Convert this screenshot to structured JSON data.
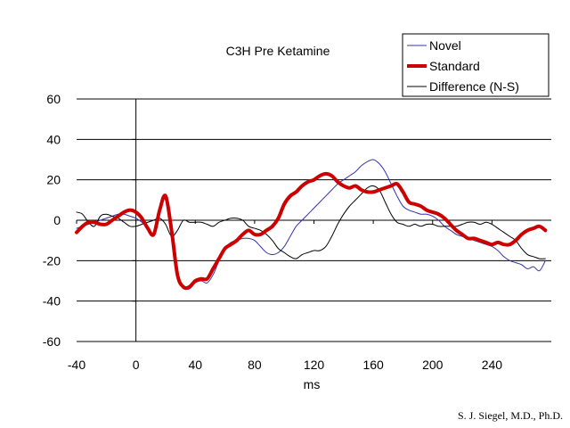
{
  "chart_data": {
    "type": "line",
    "title": "C3H Pre Ketamine",
    "xlabel": "ms",
    "ylabel": "",
    "xlim": [
      -40,
      280
    ],
    "ylim": [
      -60,
      60
    ],
    "x_ticks": [
      -40,
      0,
      40,
      80,
      120,
      160,
      200,
      240
    ],
    "y_ticks": [
      -60,
      -40,
      -20,
      0,
      20,
      40,
      60
    ],
    "grid": "horizontal",
    "legend_position": "top-right",
    "series": [
      {
        "name": "Novel",
        "color": "#3333aa",
        "width": 1,
        "x": [
          -40,
          -36,
          -32,
          -28,
          -24,
          -20,
          -16,
          -12,
          -8,
          -4,
          0,
          4,
          8,
          12,
          16,
          20,
          24,
          28,
          32,
          36,
          40,
          44,
          48,
          52,
          56,
          60,
          64,
          68,
          72,
          76,
          80,
          84,
          88,
          92,
          96,
          100,
          104,
          108,
          112,
          116,
          120,
          124,
          128,
          132,
          136,
          140,
          144,
          148,
          152,
          156,
          160,
          164,
          168,
          172,
          176,
          180,
          184,
          188,
          192,
          196,
          200,
          204,
          208,
          212,
          216,
          220,
          224,
          228,
          232,
          236,
          240,
          244,
          248,
          252,
          256,
          260,
          264,
          268,
          272,
          276
        ],
        "y": [
          -4,
          -3,
          -2,
          -1,
          0,
          1,
          2,
          3,
          3,
          2,
          1,
          -1,
          -4,
          -7,
          6,
          10,
          -8,
          -26,
          -33,
          -34,
          -31,
          -30,
          -31,
          -27,
          -20,
          -14,
          -11,
          -10,
          -9,
          -9,
          -10,
          -13,
          -16,
          -17,
          -16,
          -13,
          -8,
          -3,
          0,
          3,
          6,
          9,
          12,
          15,
          18,
          20,
          22,
          24,
          27,
          29,
          30,
          28,
          24,
          18,
          12,
          7,
          5,
          4,
          3,
          3,
          2,
          0,
          -3,
          -5,
          -7,
          -8,
          -9,
          -10,
          -11,
          -12,
          -13,
          -15,
          -18,
          -20,
          -21,
          -22,
          -24,
          -23,
          -25,
          -20
        ]
      },
      {
        "name": "Standard",
        "color": "#cc0000",
        "width": 4,
        "x": [
          -40,
          -36,
          -32,
          -28,
          -24,
          -20,
          -16,
          -12,
          -8,
          -4,
          0,
          4,
          8,
          12,
          16,
          20,
          24,
          28,
          32,
          36,
          40,
          44,
          48,
          52,
          56,
          60,
          64,
          68,
          72,
          76,
          80,
          84,
          88,
          92,
          96,
          100,
          104,
          108,
          112,
          116,
          120,
          124,
          128,
          132,
          136,
          140,
          144,
          148,
          152,
          156,
          160,
          164,
          168,
          172,
          176,
          180,
          184,
          188,
          192,
          196,
          200,
          204,
          208,
          212,
          216,
          220,
          224,
          228,
          232,
          236,
          240,
          244,
          248,
          252,
          256,
          260,
          264,
          268,
          272,
          276
        ],
        "y": [
          -6,
          -3,
          -1,
          -1,
          -2,
          -2,
          0,
          2,
          4,
          5,
          4,
          1,
          -4,
          -7,
          5,
          12,
          -5,
          -27,
          -33,
          -33,
          -30,
          -29,
          -29,
          -24,
          -19,
          -14,
          -12,
          -10,
          -7,
          -5,
          -7,
          -7,
          -5,
          -3,
          1,
          8,
          12,
          14,
          17,
          19,
          20,
          22,
          23,
          22,
          19,
          17,
          16,
          17,
          15,
          14,
          14,
          15,
          16,
          17,
          18,
          14,
          9,
          8,
          7,
          5,
          4,
          3,
          1,
          -2,
          -5,
          -7,
          -9,
          -9,
          -10,
          -11,
          -12,
          -11,
          -12,
          -12,
          -10,
          -7,
          -5,
          -4,
          -3,
          -5
        ]
      },
      {
        "name": "Difference (N-S)",
        "color": "#000000",
        "width": 1,
        "x": [
          -40,
          -36,
          -32,
          -28,
          -24,
          -20,
          -16,
          -12,
          -8,
          -4,
          0,
          4,
          8,
          12,
          16,
          20,
          24,
          28,
          32,
          36,
          40,
          44,
          48,
          52,
          56,
          60,
          64,
          68,
          72,
          76,
          80,
          84,
          88,
          92,
          96,
          100,
          104,
          108,
          112,
          116,
          120,
          124,
          128,
          132,
          136,
          140,
          144,
          148,
          152,
          156,
          160,
          164,
          168,
          172,
          176,
          180,
          184,
          188,
          192,
          196,
          200,
          204,
          208,
          212,
          216,
          220,
          224,
          228,
          232,
          236,
          240,
          244,
          248,
          252,
          256,
          260,
          264,
          268,
          272,
          276
        ],
        "y": [
          4,
          3,
          -1,
          -3,
          2,
          3,
          2,
          1,
          -1,
          -3,
          -3,
          -2,
          -1,
          0,
          1,
          -2,
          -8,
          -5,
          0,
          -1,
          -1,
          -1,
          -2,
          -3,
          -1,
          0,
          1,
          1,
          0,
          -3,
          -4,
          -5,
          -7,
          -10,
          -14,
          -16,
          -18,
          -19,
          -17,
          -16,
          -15,
          -15,
          -13,
          -8,
          -2,
          3,
          7,
          10,
          13,
          16,
          17,
          15,
          9,
          3,
          -1,
          -2,
          -3,
          -2,
          -3,
          -2,
          -2,
          -3,
          -3,
          -3,
          -3,
          -2,
          -1,
          -1,
          -2,
          -1,
          -2,
          -4,
          -6,
          -8,
          -10,
          -14,
          -17,
          -18,
          -19,
          -19
        ]
      }
    ]
  },
  "credit": "S. J. Siegel, M.D., Ph.D."
}
